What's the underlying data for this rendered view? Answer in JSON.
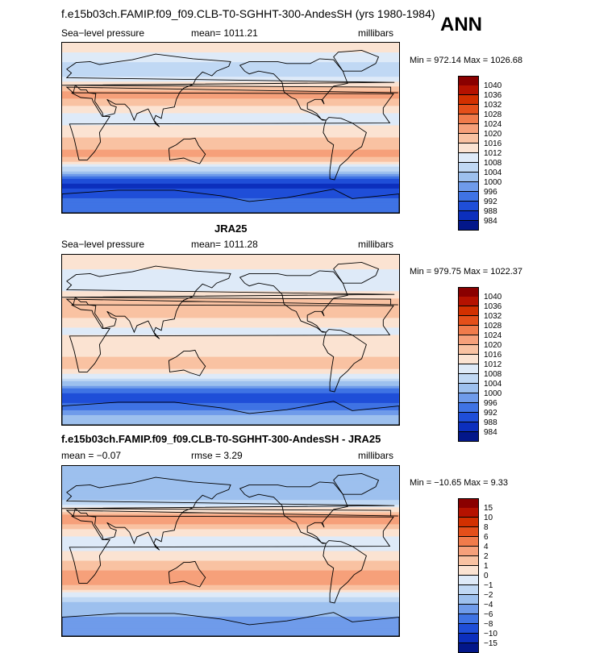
{
  "header": {
    "title": "f.e15b03ch.FAMIP.f09_f09.CLB-T0-SGHHT-300-AndesSH (yrs 1980-1984)",
    "season": "ANN"
  },
  "panels": [
    {
      "id": "model",
      "panel_title": "",
      "left_label": "Sea−level pressure",
      "center_label": "mean=  1011.21",
      "right_label": "millibars",
      "minmax": "Min = 972.14 Max = 1026.68",
      "colorbar": {
        "ticks": [
          "1040",
          "1036",
          "1032",
          "1028",
          "1024",
          "1020",
          "1016",
          "1012",
          "1008",
          "1004",
          "1000",
          "996",
          "992",
          "988",
          "984"
        ],
        "colors": [
          "#8a0000",
          "#b51200",
          "#d23000",
          "#e44f1a",
          "#f07b4b",
          "#f6a07a",
          "#f9c2a2",
          "#fbe3d2",
          "#deeaf8",
          "#c0d8f4",
          "#9dc0ee",
          "#6f9bea",
          "#3f73e4",
          "#1f4ed8",
          "#0c2fbd",
          "#03178a"
        ]
      }
    },
    {
      "id": "obs",
      "panel_title": "JRA25",
      "left_label": "Sea−level pressure",
      "center_label": "mean=  1011.28",
      "right_label": "millibars",
      "minmax": "Min = 979.75 Max = 1022.37",
      "colorbar": {
        "ticks": [
          "1040",
          "1036",
          "1032",
          "1028",
          "1024",
          "1020",
          "1016",
          "1012",
          "1008",
          "1004",
          "1000",
          "996",
          "992",
          "988",
          "984"
        ],
        "colors": [
          "#8a0000",
          "#b51200",
          "#d23000",
          "#e44f1a",
          "#f07b4b",
          "#f6a07a",
          "#f9c2a2",
          "#fbe3d2",
          "#deeaf8",
          "#c0d8f4",
          "#9dc0ee",
          "#6f9bea",
          "#3f73e4",
          "#1f4ed8",
          "#0c2fbd",
          "#03178a"
        ]
      }
    },
    {
      "id": "diff",
      "panel_title": "f.e15b03ch.FAMIP.f09_f09.CLB-T0-SGHHT-300-AndesSH - JRA25",
      "left_label": "mean =   −0.07",
      "center_label": "rmse =    3.29",
      "right_label": "millibars",
      "minmax": "Min = −10.65 Max =    9.33",
      "colorbar": {
        "ticks": [
          "15",
          "10",
          "8",
          "6",
          "4",
          "2",
          "1",
          "0",
          "−1",
          "−2",
          "−4",
          "−6",
          "−8",
          "−10",
          "−15"
        ],
        "colors": [
          "#8a0000",
          "#b51200",
          "#d23000",
          "#e44f1a",
          "#f07b4b",
          "#f6a07a",
          "#f9c2a2",
          "#fbe3d2",
          "#deeaf8",
          "#c0d8f4",
          "#9dc0ee",
          "#6f9bea",
          "#3f73e4",
          "#1f4ed8",
          "#0c2fbd",
          "#03178a"
        ]
      }
    }
  ],
  "chart_data": [
    {
      "type": "heatmap",
      "title": "Sea−level pressure",
      "units": "millibars",
      "mean": 1011.21,
      "min": 972.14,
      "max": 1026.68,
      "levels": [
        984,
        988,
        992,
        996,
        1000,
        1004,
        1008,
        1012,
        1016,
        1020,
        1024,
        1028,
        1032,
        1036,
        1040
      ],
      "zonal_bands": [
        {
          "lat": 80,
          "value": 1012
        },
        {
          "lat": 60,
          "value": 1004
        },
        {
          "lat": 35,
          "value": 1022
        },
        {
          "lat": 10,
          "value": 1010
        },
        {
          "lat": -30,
          "value": 1022
        },
        {
          "lat": -60,
          "value": 986
        },
        {
          "lat": -80,
          "value": 995
        }
      ]
    },
    {
      "type": "heatmap",
      "title": "JRA25",
      "units": "millibars",
      "mean": 1011.28,
      "min": 979.75,
      "max": 1022.37,
      "levels": [
        984,
        988,
        992,
        996,
        1000,
        1004,
        1008,
        1012,
        1016,
        1020,
        1024,
        1028,
        1032,
        1036,
        1040
      ],
      "zonal_bands": [
        {
          "lat": 80,
          "value": 1014
        },
        {
          "lat": 60,
          "value": 1008
        },
        {
          "lat": 35,
          "value": 1020
        },
        {
          "lat": 10,
          "value": 1011
        },
        {
          "lat": -30,
          "value": 1018
        },
        {
          "lat": -60,
          "value": 988
        },
        {
          "lat": -80,
          "value": 1000
        }
      ]
    },
    {
      "type": "heatmap",
      "title": "f.e15b03ch.FAMIP.f09_f09.CLB-T0-SGHHT-300-AndesSH - JRA25",
      "units": "millibars",
      "mean": -0.07,
      "rmse": 3.29,
      "min": -10.65,
      "max": 9.33,
      "levels": [
        -15,
        -10,
        -8,
        -6,
        -4,
        -2,
        -1,
        0,
        1,
        2,
        4,
        6,
        8,
        10,
        15
      ],
      "zonal_bands": [
        {
          "lat": 80,
          "value": -3
        },
        {
          "lat": 60,
          "value": -4
        },
        {
          "lat": 35,
          "value": 3
        },
        {
          "lat": 10,
          "value": -1
        },
        {
          "lat": -30,
          "value": 3
        },
        {
          "lat": -60,
          "value": -3
        },
        {
          "lat": -80,
          "value": -5
        }
      ]
    }
  ]
}
